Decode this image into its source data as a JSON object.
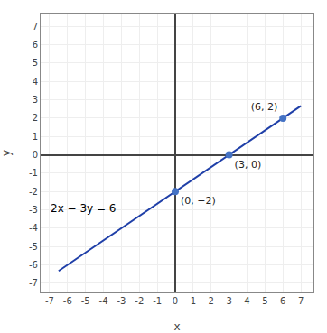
{
  "chart_data": {
    "type": "line",
    "xlabel": "x",
    "ylabel": "y",
    "xlim": [
      -7.5,
      7.7
    ],
    "ylim": [
      -7.5,
      7.7
    ],
    "xticks": [
      -7,
      -6,
      -5,
      -4,
      -3,
      -2,
      -1,
      0,
      1,
      2,
      3,
      4,
      5,
      6,
      7
    ],
    "yticks": [
      -7,
      -6,
      -5,
      -4,
      -3,
      -2,
      -1,
      0,
      1,
      2,
      3,
      4,
      5,
      6,
      7
    ],
    "grid": true,
    "annotations": [
      "2x − 3y = 6"
    ],
    "series": [
      {
        "type": "line",
        "color": "#1f3fa8",
        "x": [
          -6.5,
          7.0
        ],
        "values": [
          -6.333333333333333,
          2.6666666666666665
        ]
      },
      {
        "type": "scatter",
        "color": "#4472c4",
        "data_labels": true,
        "x": [
          0,
          3,
          6
        ],
        "values": [
          -2,
          0,
          2
        ],
        "value_labels": [
          "(0, −2)",
          "(3, 0)",
          "(6, 2)"
        ]
      }
    ]
  }
}
